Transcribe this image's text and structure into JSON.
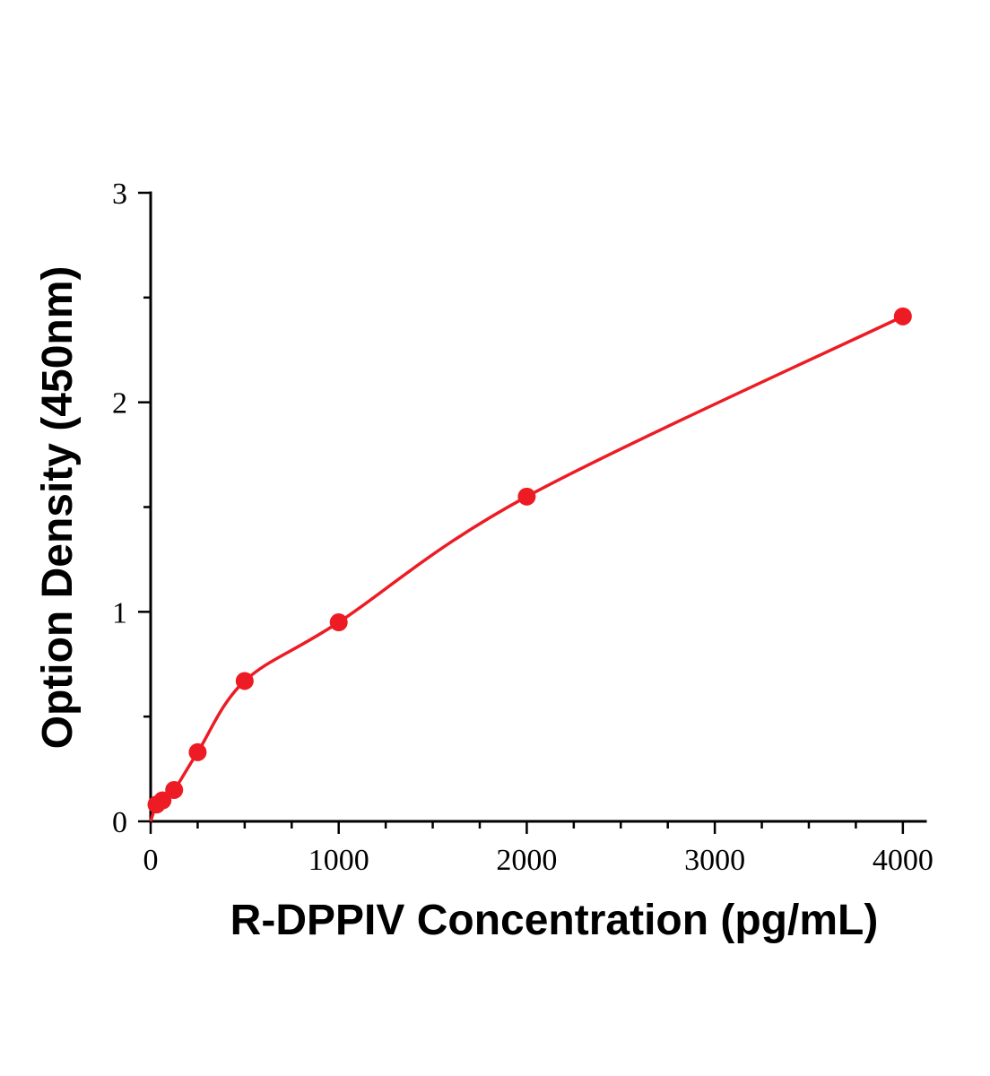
{
  "chart_data": {
    "type": "scatter",
    "title": "",
    "xlabel": "R-DPPIV Concentration (pg/mL)",
    "ylabel": "Option Density (450nm)",
    "x": [
      31,
      63,
      125,
      250,
      500,
      1000,
      2000,
      4000
    ],
    "y": [
      0.08,
      0.1,
      0.15,
      0.33,
      0.67,
      0.95,
      1.55,
      2.41
    ],
    "curve_start": {
      "x": 0,
      "y": 0
    },
    "xlim": [
      0,
      4120
    ],
    "ylim": [
      0,
      3
    ],
    "x_major_ticks": [
      0,
      1000,
      2000,
      3000,
      4000
    ],
    "x_minor_step": 250,
    "y_major_ticks": [
      0,
      1,
      2,
      3
    ],
    "y_minor_step": 0.5,
    "grid": "off",
    "legend": "none",
    "series_color": "#ed1c24",
    "axis_color": "#000000",
    "marker_radius": 10,
    "line_width": 3.5
  }
}
